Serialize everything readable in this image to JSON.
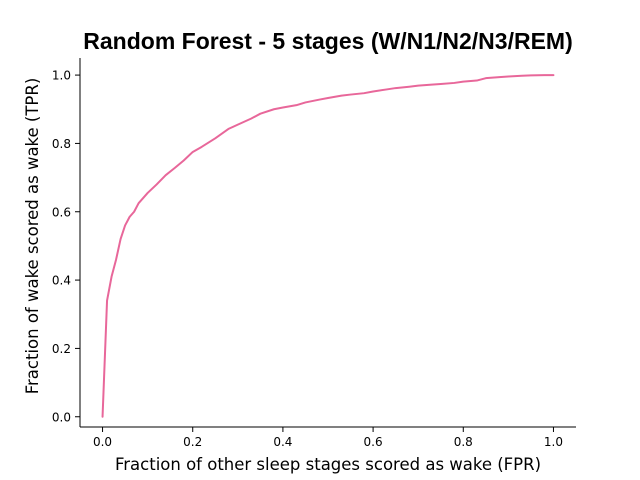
{
  "chart_data": {
    "type": "line",
    "title": "Random Forest - 5 stages (W/N1/N2/N3/REM)",
    "xlabel": "Fraction of other sleep stages scored as wake (FPR)",
    "ylabel": "Fraction of wake scored as wake (TPR)",
    "xlim": [
      -0.05,
      1.05
    ],
    "ylim": [
      -0.03,
      1.05
    ],
    "xticks": [
      0.0,
      0.2,
      0.4,
      0.6,
      0.8,
      1.0
    ],
    "xtick_labels": [
      "0.0",
      "0.2",
      "0.4",
      "0.6",
      "0.8",
      "1.0"
    ],
    "yticks": [
      0.0,
      0.2,
      0.4,
      0.6,
      0.8,
      1.0
    ],
    "ytick_labels": [
      "0.0",
      "0.2",
      "0.4",
      "0.6",
      "0.8",
      "1.0"
    ],
    "grid": false,
    "legend": "none",
    "line_color": "#e8679a",
    "series": [
      {
        "x": [
          0.0,
          0.01,
          0.02,
          0.03,
          0.04,
          0.05,
          0.06,
          0.07,
          0.08,
          0.09,
          0.1,
          0.12,
          0.14,
          0.16,
          0.18,
          0.2,
          0.22,
          0.25,
          0.28,
          0.3,
          0.33,
          0.35,
          0.38,
          0.4,
          0.43,
          0.45,
          0.48,
          0.5,
          0.53,
          0.55,
          0.58,
          0.6,
          0.63,
          0.65,
          0.68,
          0.7,
          0.73,
          0.75,
          0.78,
          0.8,
          0.83,
          0.85,
          0.88,
          0.9,
          0.93,
          0.95,
          0.98,
          1.0
        ],
        "y": [
          0.0,
          0.34,
          0.41,
          0.46,
          0.52,
          0.56,
          0.585,
          0.6,
          0.625,
          0.64,
          0.655,
          0.68,
          0.707,
          0.728,
          0.75,
          0.775,
          0.79,
          0.815,
          0.843,
          0.855,
          0.873,
          0.887,
          0.9,
          0.905,
          0.912,
          0.92,
          0.928,
          0.933,
          0.94,
          0.943,
          0.947,
          0.952,
          0.958,
          0.962,
          0.966,
          0.969,
          0.972,
          0.974,
          0.977,
          0.981,
          0.984,
          0.991,
          0.994,
          0.996,
          0.998,
          0.999,
          1.0,
          1.0
        ]
      }
    ]
  }
}
